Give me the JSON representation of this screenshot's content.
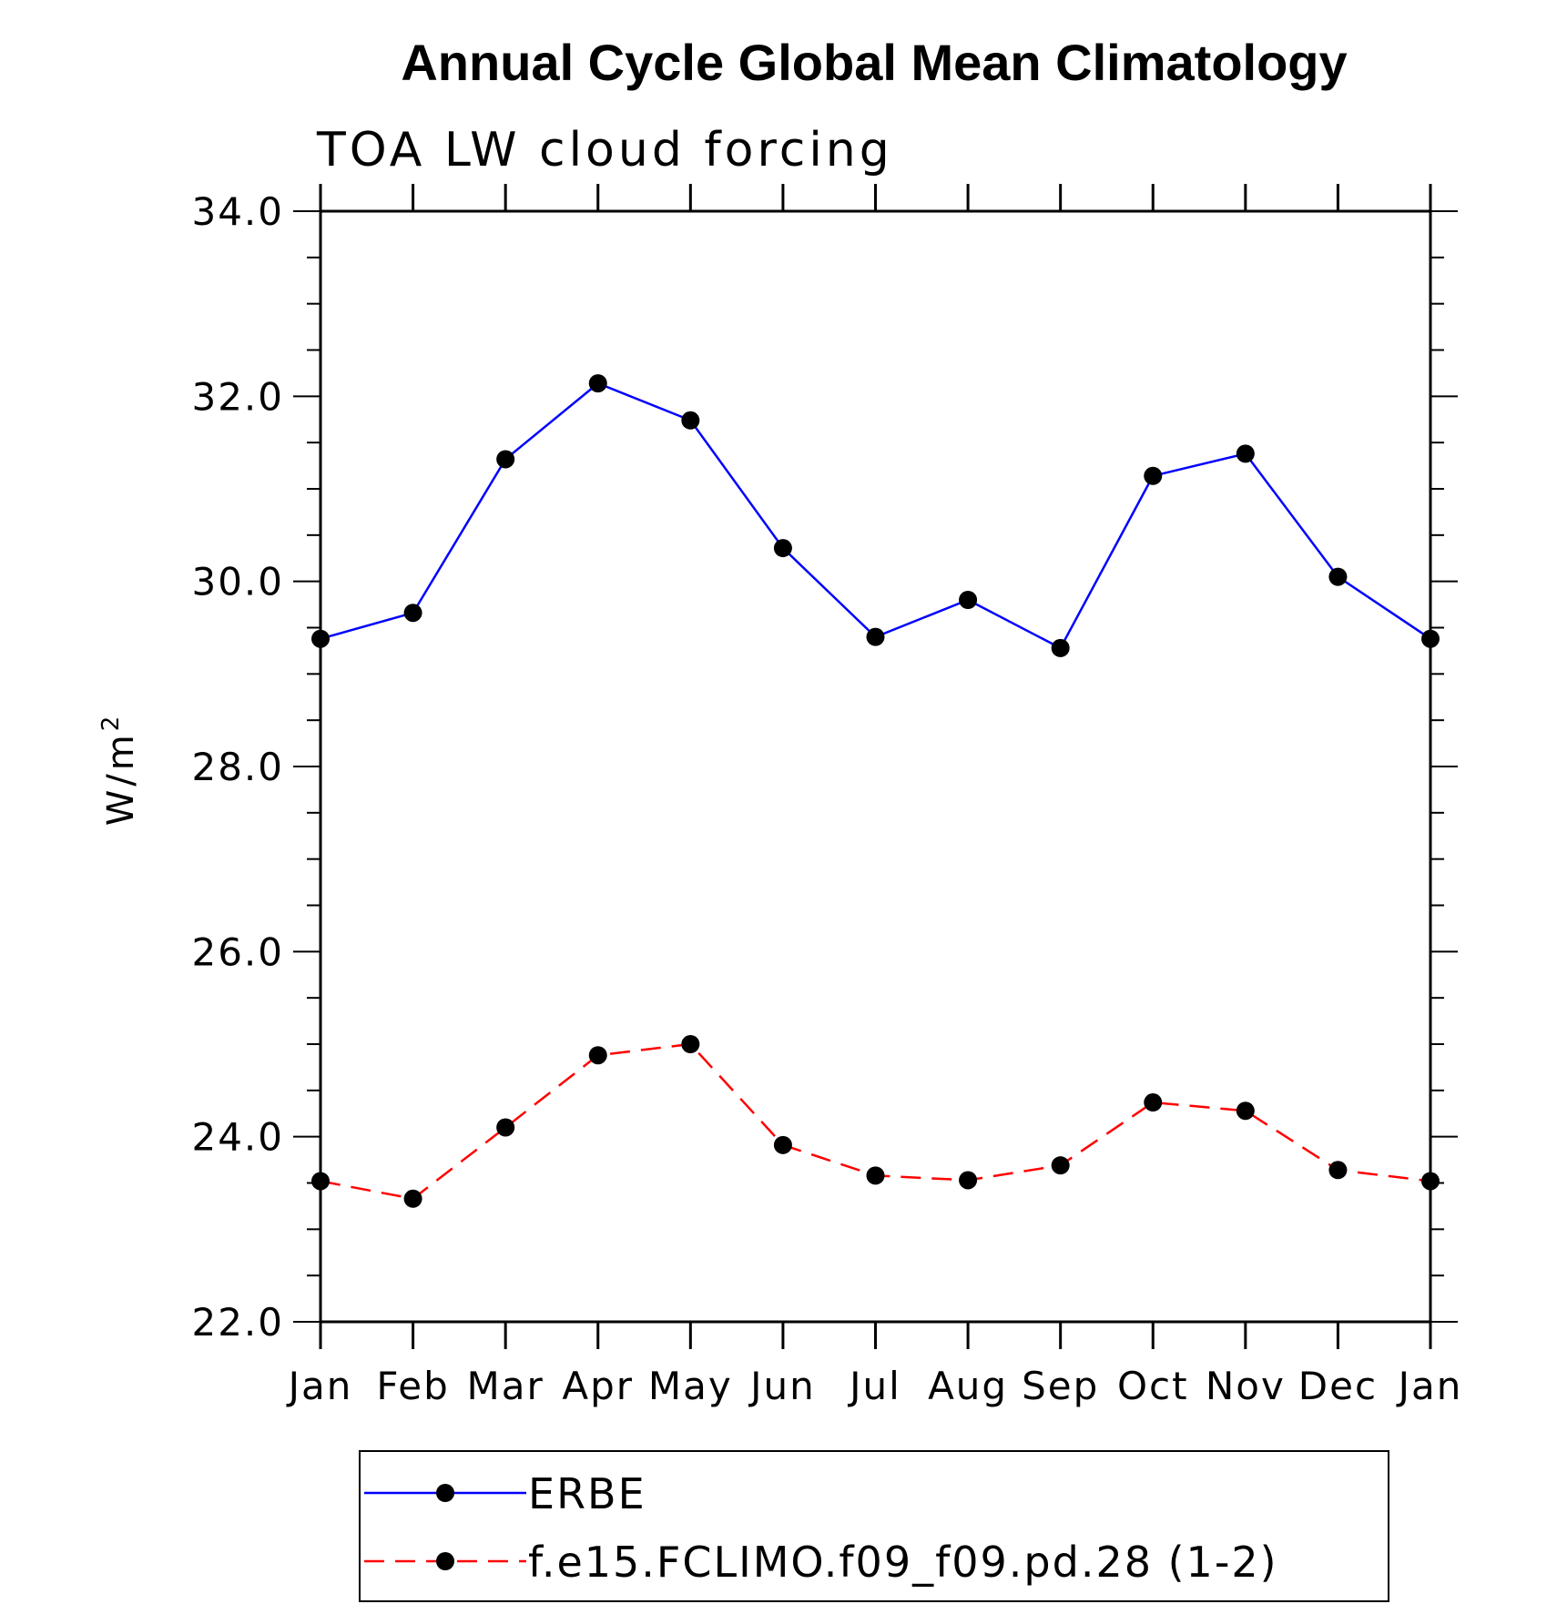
{
  "chart_data": {
    "type": "line",
    "title": "Annual Cycle Global Mean Climatology",
    "subtitle": "TOA LW cloud forcing",
    "ylabel": "W/m",
    "ylabel_superscript": "2",
    "xlabel": "",
    "categories": [
      "Jan",
      "Feb",
      "Mar",
      "Apr",
      "May",
      "Jun",
      "Jul",
      "Aug",
      "Sep",
      "Oct",
      "Nov",
      "Dec",
      "Jan"
    ],
    "ylim": [
      22.0,
      34.0
    ],
    "y_ticks": [
      "22.0",
      "24.0",
      "26.0",
      "28.0",
      "30.0",
      "32.0",
      "34.0"
    ],
    "y_minor_step": 0.5,
    "grid": false,
    "legend_position": "bottom",
    "series": [
      {
        "name": "ERBE",
        "color": "#0000ff",
        "line_style": "solid",
        "marker": "filled-circle",
        "values": [
          29.38,
          29.66,
          31.32,
          32.14,
          31.74,
          30.36,
          29.4,
          29.8,
          29.28,
          31.14,
          31.38,
          30.05,
          29.38
        ]
      },
      {
        "name": "f.e15.FCLIMO.f09_f09.pd.28 (1-2)",
        "color": "#ff0000",
        "line_style": "dashed",
        "marker": "filled-circle",
        "values": [
          23.52,
          23.33,
          24.1,
          24.88,
          25.0,
          23.91,
          23.58,
          23.53,
          23.69,
          24.37,
          24.28,
          23.64,
          23.52
        ]
      }
    ]
  }
}
